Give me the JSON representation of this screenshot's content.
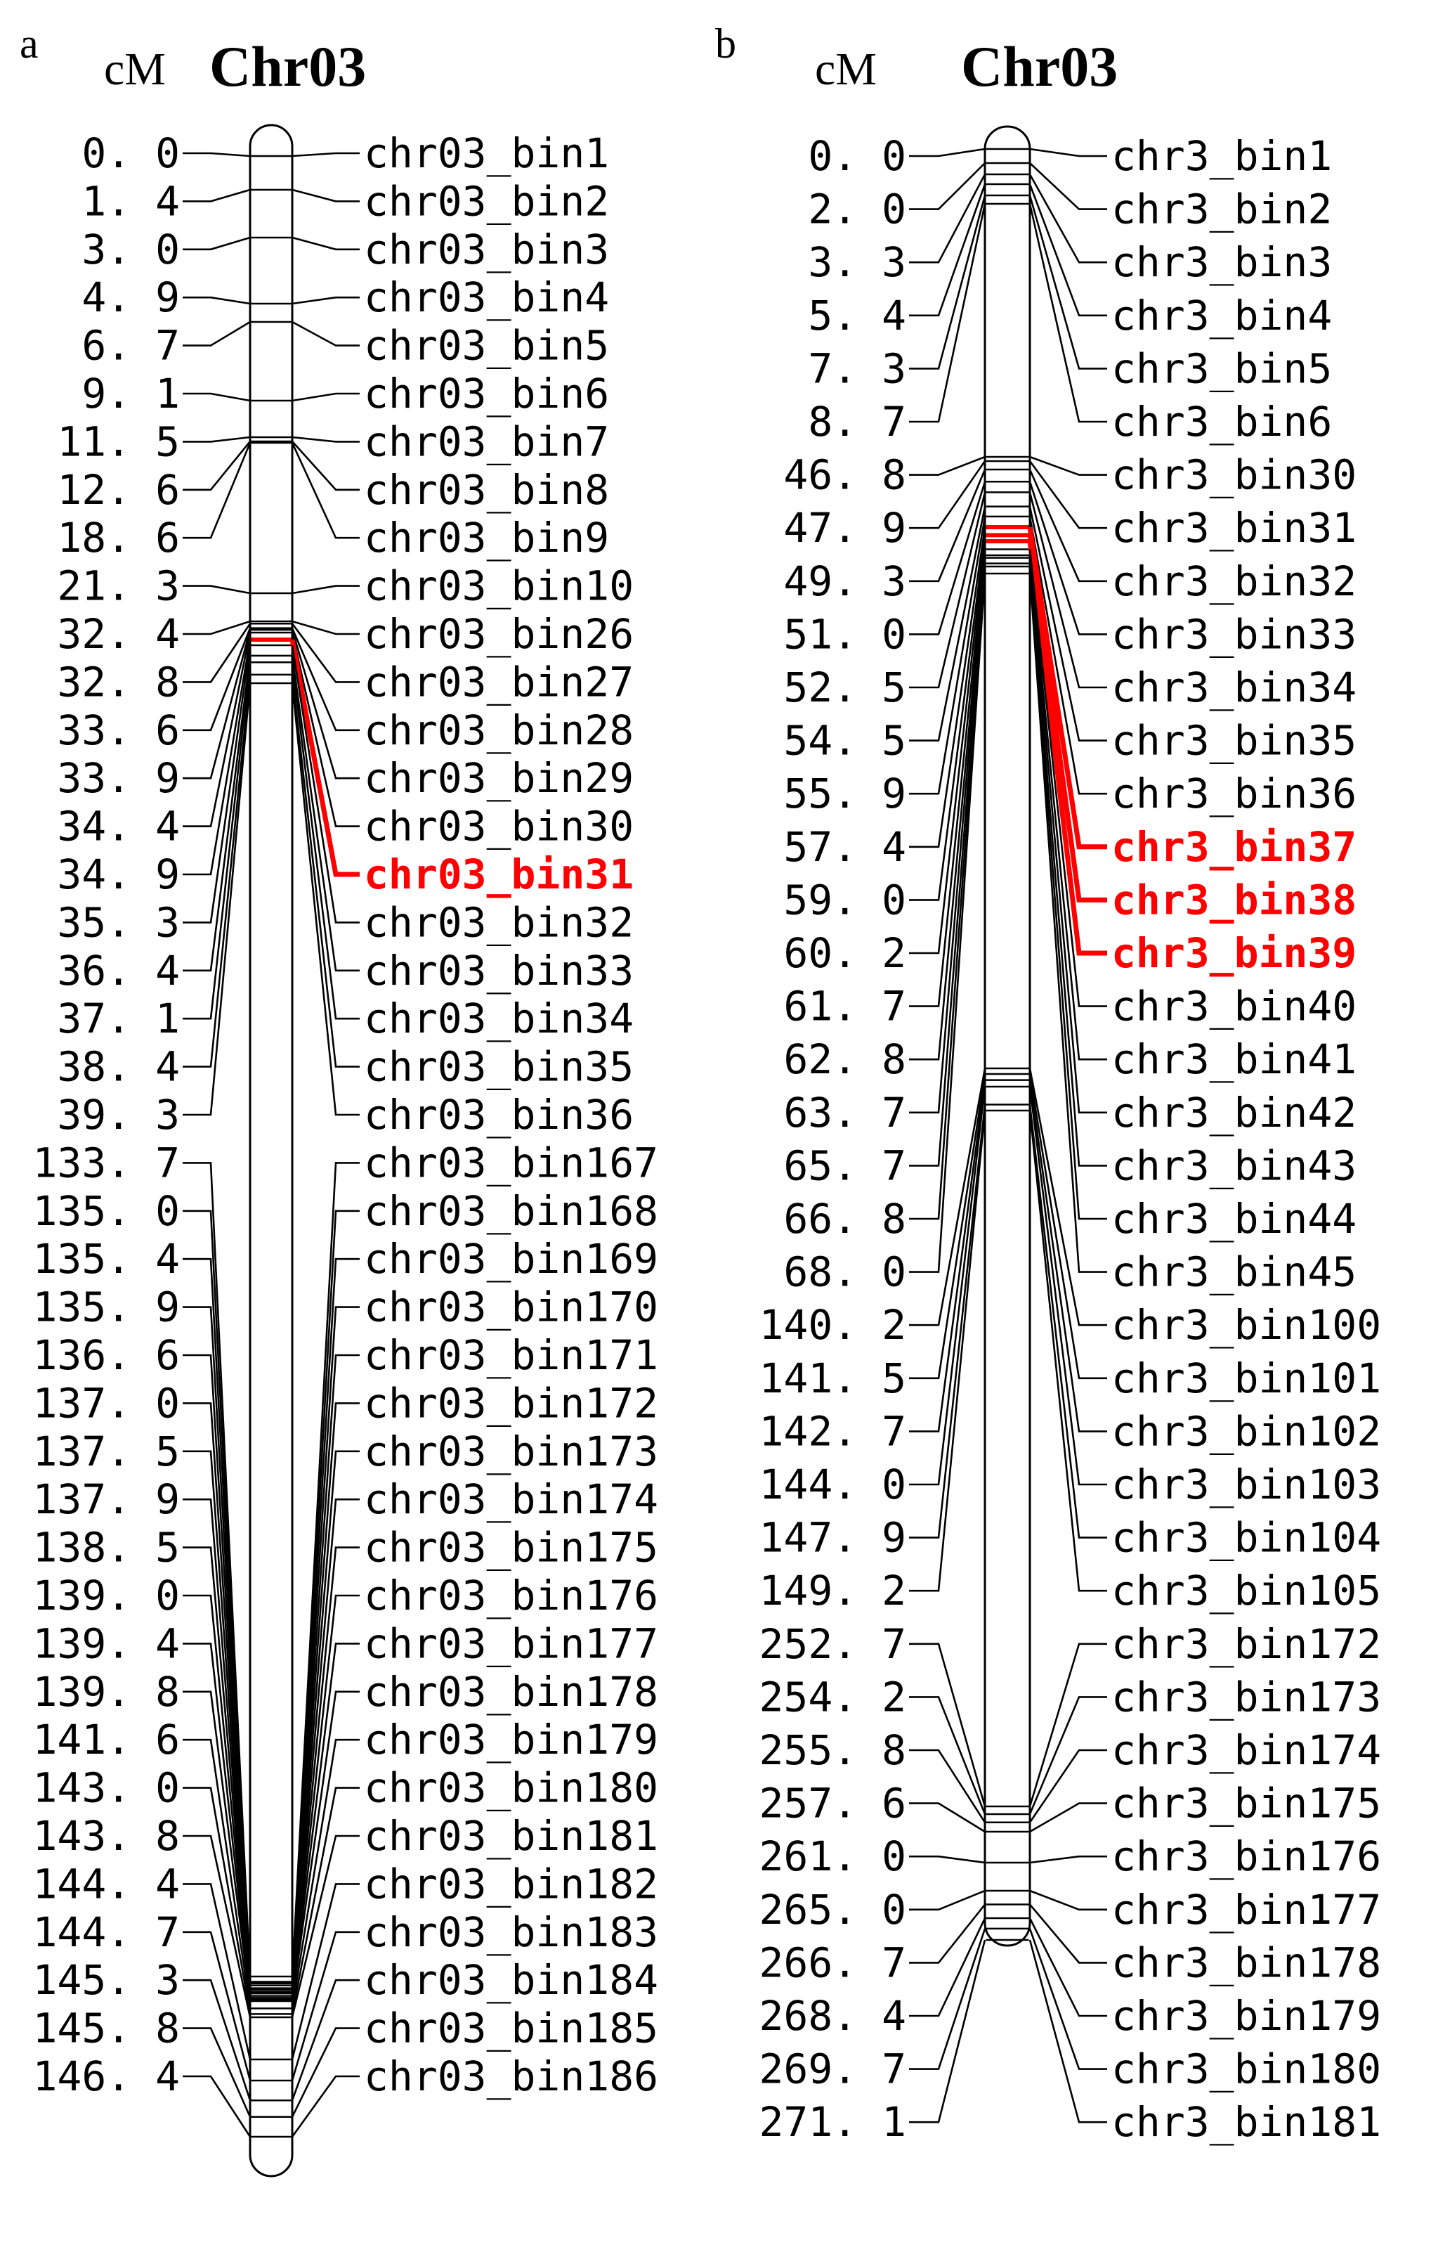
{
  "panels": [
    {
      "letter": "a",
      "unit": "cM",
      "chromosome": "Chr03",
      "highlight_color": "#ff0000",
      "segments": [
        {
          "markers": [
            {
              "cm": "0. 0",
              "name": "chr03_bin1"
            },
            {
              "cm": "1. 4",
              "name": "chr03_bin2"
            },
            {
              "cm": "3. 0",
              "name": "chr03_bin3"
            },
            {
              "cm": "4. 9",
              "name": "chr03_bin4"
            },
            {
              "cm": "6. 7",
              "name": "chr03_bin5"
            },
            {
              "cm": "9. 1",
              "name": "chr03_bin6"
            },
            {
              "cm": "11. 5",
              "name": "chr03_bin7"
            },
            {
              "cm": "12. 6",
              "name": "chr03_bin8"
            },
            {
              "cm": "18. 6",
              "name": "chr03_bin9"
            },
            {
              "cm": "21. 3",
              "name": "chr03_bin10"
            },
            {
              "cm": "32. 4",
              "name": "chr03_bin26"
            },
            {
              "cm": "32. 8",
              "name": "chr03_bin27"
            },
            {
              "cm": "33. 6",
              "name": "chr03_bin28"
            },
            {
              "cm": "33. 9",
              "name": "chr03_bin29"
            },
            {
              "cm": "34. 4",
              "name": "chr03_bin30"
            },
            {
              "cm": "34. 9",
              "name": "chr03_bin31",
              "highlight": true
            },
            {
              "cm": "35. 3",
              "name": "chr03_bin32"
            },
            {
              "cm": "36. 4",
              "name": "chr03_bin33"
            },
            {
              "cm": "37. 1",
              "name": "chr03_bin34"
            },
            {
              "cm": "38. 4",
              "name": "chr03_bin35"
            },
            {
              "cm": "39. 3",
              "name": "chr03_bin36"
            }
          ]
        },
        {
          "markers": [
            {
              "cm": "133. 7",
              "name": "chr03_bin167"
            },
            {
              "cm": "135. 0",
              "name": "chr03_bin168"
            },
            {
              "cm": "135. 4",
              "name": "chr03_bin169"
            },
            {
              "cm": "135. 9",
              "name": "chr03_bin170"
            },
            {
              "cm": "136. 6",
              "name": "chr03_bin171"
            },
            {
              "cm": "137. 0",
              "name": "chr03_bin172"
            },
            {
              "cm": "137. 5",
              "name": "chr03_bin173"
            },
            {
              "cm": "137. 9",
              "name": "chr03_bin174"
            },
            {
              "cm": "138. 5",
              "name": "chr03_bin175"
            },
            {
              "cm": "139. 0",
              "name": "chr03_bin176"
            },
            {
              "cm": "139. 4",
              "name": "chr03_bin177"
            },
            {
              "cm": "139. 8",
              "name": "chr03_bin178"
            },
            {
              "cm": "141. 6",
              "name": "chr03_bin179"
            },
            {
              "cm": "143. 0",
              "name": "chr03_bin180"
            },
            {
              "cm": "143. 8",
              "name": "chr03_bin181"
            },
            {
              "cm": "144. 4",
              "name": "chr03_bin182"
            },
            {
              "cm": "144. 7",
              "name": "chr03_bin183"
            },
            {
              "cm": "145. 3",
              "name": "chr03_bin184"
            },
            {
              "cm": "145. 8",
              "name": "chr03_bin185"
            },
            {
              "cm": "146. 4",
              "name": "chr03_bin186"
            }
          ]
        }
      ]
    },
    {
      "letter": "b",
      "unit": "cM",
      "chromosome": "Chr03",
      "highlight_color": "#ff0000",
      "segments": [
        {
          "markers": [
            {
              "cm": "0. 0",
              "name": "chr3_bin1"
            },
            {
              "cm": "2. 0",
              "name": "chr3_bin2"
            },
            {
              "cm": "3. 3",
              "name": "chr3_bin3"
            },
            {
              "cm": "5. 4",
              "name": "chr3_bin4"
            },
            {
              "cm": "7. 3",
              "name": "chr3_bin5"
            },
            {
              "cm": "8. 7",
              "name": "chr3_bin6"
            },
            {
              "cm": "46. 8",
              "name": "chr3_bin30"
            },
            {
              "cm": "47. 9",
              "name": "chr3_bin31"
            },
            {
              "cm": "49. 3",
              "name": "chr3_bin32"
            },
            {
              "cm": "51. 0",
              "name": "chr3_bin33"
            },
            {
              "cm": "52. 5",
              "name": "chr3_bin34"
            },
            {
              "cm": "54. 5",
              "name": "chr3_bin35"
            },
            {
              "cm": "55. 9",
              "name": "chr3_bin36"
            },
            {
              "cm": "57. 4",
              "name": "chr3_bin37",
              "highlight": true
            },
            {
              "cm": "59. 0",
              "name": "chr3_bin38",
              "highlight": true
            },
            {
              "cm": "60. 2",
              "name": "chr3_bin39",
              "highlight": true
            },
            {
              "cm": "61. 7",
              "name": "chr3_bin40"
            },
            {
              "cm": "62. 8",
              "name": "chr3_bin41"
            },
            {
              "cm": "63. 7",
              "name": "chr3_bin42"
            },
            {
              "cm": "65. 7",
              "name": "chr3_bin43"
            },
            {
              "cm": "66. 8",
              "name": "chr3_bin44"
            },
            {
              "cm": "68. 0",
              "name": "chr3_bin45"
            },
            {
              "cm": "140. 2",
              "name": "chr3_bin100"
            },
            {
              "cm": "141. 5",
              "name": "chr3_bin101"
            },
            {
              "cm": "142. 7",
              "name": "chr3_bin102"
            },
            {
              "cm": "144. 0",
              "name": "chr3_bin103"
            },
            {
              "cm": "147. 9",
              "name": "chr3_bin104"
            },
            {
              "cm": "149. 2",
              "name": "chr3_bin105"
            },
            {
              "cm": "252. 7",
              "name": "chr3_bin172"
            },
            {
              "cm": "254. 2",
              "name": "chr3_bin173"
            },
            {
              "cm": "255. 8",
              "name": "chr3_bin174"
            },
            {
              "cm": "257. 6",
              "name": "chr3_bin175"
            },
            {
              "cm": "261. 0",
              "name": "chr3_bin176"
            },
            {
              "cm": "265. 0",
              "name": "chr3_bin177"
            },
            {
              "cm": "266. 7",
              "name": "chr3_bin178"
            },
            {
              "cm": "268. 4",
              "name": "chr3_bin179"
            },
            {
              "cm": "269. 7",
              "name": "chr3_bin180"
            },
            {
              "cm": "271. 1",
              "name": "chr3_bin181"
            }
          ]
        }
      ]
    }
  ]
}
